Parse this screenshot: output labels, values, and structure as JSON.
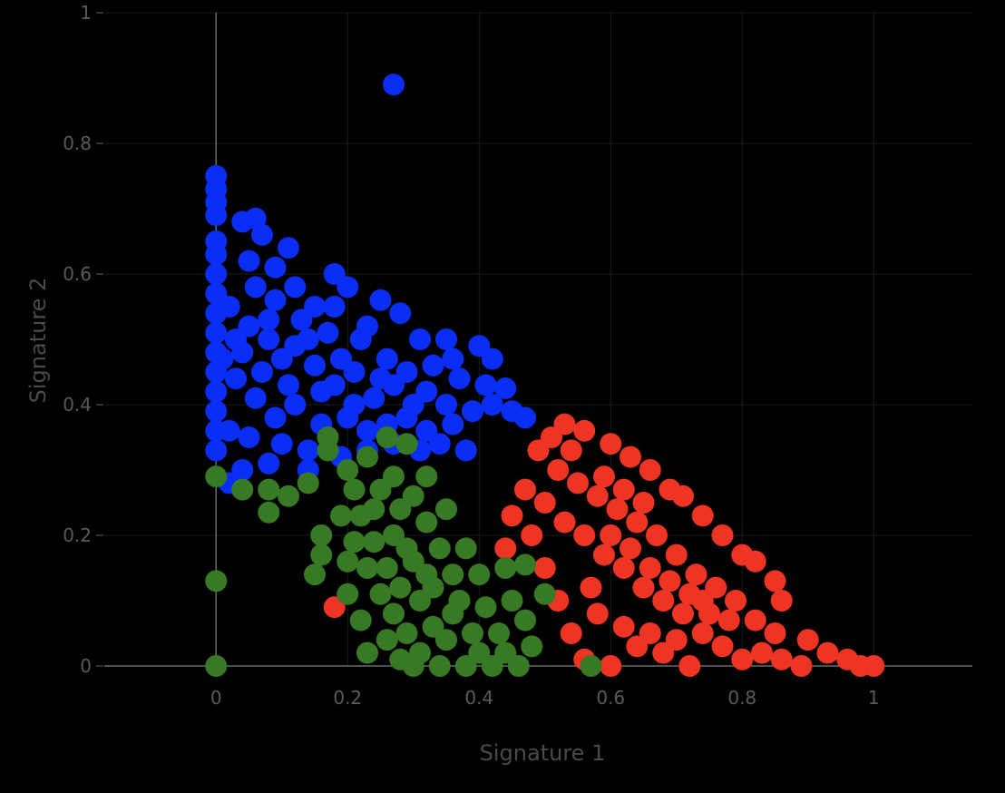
{
  "chart_data": {
    "type": "scatter",
    "title": "",
    "xlabel": "Signature 1",
    "ylabel": "Signature 2",
    "xlim": [
      -0.17,
      1.15
    ],
    "ylim": [
      0,
      1
    ],
    "x_ticks": [
      0,
      0.2,
      0.4,
      0.6,
      0.8,
      1
    ],
    "y_ticks": [
      0,
      0.2,
      0.4,
      0.6,
      0.8,
      1
    ],
    "x_tick_labels": [
      "0",
      "0.2",
      "0.4",
      "0.6",
      "0.8",
      "1"
    ],
    "y_tick_labels": [
      "0",
      "0.2",
      "0.4",
      "0.6",
      "0.8",
      "1"
    ],
    "grid": true,
    "legend": "none",
    "series": [
      {
        "color": "#0a2ef5",
        "points": [
          [
            0.27,
            0.89
          ],
          [
            0,
            0.75
          ],
          [
            0,
            0.73
          ],
          [
            0,
            0.71
          ],
          [
            0,
            0.69
          ],
          [
            0.04,
            0.68
          ],
          [
            0.06,
            0.685
          ],
          [
            0.07,
            0.66
          ],
          [
            0,
            0.65
          ],
          [
            0,
            0.63
          ],
          [
            0.11,
            0.64
          ],
          [
            0.05,
            0.62
          ],
          [
            0.09,
            0.61
          ],
          [
            0,
            0.6
          ],
          [
            0.18,
            0.6
          ],
          [
            0.2,
            0.58
          ],
          [
            0.25,
            0.56
          ],
          [
            0.12,
            0.58
          ],
          [
            0.15,
            0.55
          ],
          [
            0.28,
            0.54
          ],
          [
            0.31,
            0.5
          ],
          [
            0.35,
            0.5
          ],
          [
            0.4,
            0.49
          ],
          [
            0.42,
            0.47
          ],
          [
            0.36,
            0.47
          ],
          [
            0.33,
            0.46
          ],
          [
            0.41,
            0.43
          ],
          [
            0.44,
            0.425
          ],
          [
            0.45,
            0.39
          ],
          [
            0.47,
            0.38
          ],
          [
            0.39,
            0.39
          ],
          [
            0.36,
            0.37
          ],
          [
            0.32,
            0.36
          ],
          [
            0.27,
            0.34
          ],
          [
            0.31,
            0.33
          ],
          [
            0.23,
            0.33
          ],
          [
            0.19,
            0.32
          ],
          [
            0.14,
            0.3
          ],
          [
            0.08,
            0.31
          ],
          [
            0.04,
            0.3
          ],
          [
            0.02,
            0.28
          ],
          [
            0.38,
            0.33
          ],
          [
            0.34,
            0.34
          ],
          [
            0.02,
            0.55
          ],
          [
            0.05,
            0.52
          ],
          [
            0.08,
            0.5
          ],
          [
            0.1,
            0.47
          ],
          [
            0.12,
            0.49
          ],
          [
            0.15,
            0.46
          ],
          [
            0.18,
            0.43
          ],
          [
            0.21,
            0.45
          ],
          [
            0.24,
            0.41
          ],
          [
            0.27,
            0.43
          ],
          [
            0.3,
            0.4
          ],
          [
            0.03,
            0.44
          ],
          [
            0.06,
            0.41
          ],
          [
            0.09,
            0.38
          ],
          [
            0.12,
            0.4
          ],
          [
            0.16,
            0.37
          ],
          [
            0.2,
            0.38
          ],
          [
            0.23,
            0.36
          ],
          [
            0.26,
            0.37
          ],
          [
            0.29,
            0.38
          ],
          [
            0.02,
            0.36
          ],
          [
            0.05,
            0.35
          ],
          [
            0.1,
            0.34
          ],
          [
            0.14,
            0.33
          ],
          [
            0.04,
            0.48
          ],
          [
            0.07,
            0.45
          ],
          [
            0.11,
            0.43
          ],
          [
            0.17,
            0.51
          ],
          [
            0.22,
            0.5
          ],
          [
            0.26,
            0.47
          ],
          [
            0.13,
            0.53
          ],
          [
            0.09,
            0.56
          ],
          [
            0.06,
            0.58
          ],
          [
            0,
            0.57
          ],
          [
            0,
            0.54
          ],
          [
            0,
            0.51
          ],
          [
            0,
            0.48
          ],
          [
            0,
            0.45
          ],
          [
            0,
            0.42
          ],
          [
            0,
            0.39
          ],
          [
            0,
            0.36
          ],
          [
            0,
            0.33
          ],
          [
            0.19,
            0.47
          ],
          [
            0.16,
            0.42
          ],
          [
            0.25,
            0.44
          ],
          [
            0.32,
            0.42
          ],
          [
            0.35,
            0.4
          ],
          [
            0.29,
            0.45
          ],
          [
            0.21,
            0.4
          ],
          [
            0.08,
            0.53
          ],
          [
            0.14,
            0.5
          ],
          [
            0.03,
            0.5
          ],
          [
            0.01,
            0.47
          ],
          [
            0.18,
            0.55
          ],
          [
            0.23,
            0.52
          ],
          [
            0.37,
            0.44
          ],
          [
            0.42,
            0.4
          ]
        ]
      },
      {
        "color": "#ee3524",
        "points": [
          [
            1,
            0
          ],
          [
            0.98,
            0
          ],
          [
            0.96,
            0.01
          ],
          [
            0.93,
            0.02
          ],
          [
            0.9,
            0.04
          ],
          [
            0.86,
            0.1
          ],
          [
            0.85,
            0.13
          ],
          [
            0.82,
            0.16
          ],
          [
            0.8,
            0.17
          ],
          [
            0.77,
            0.2
          ],
          [
            0.74,
            0.23
          ],
          [
            0.71,
            0.26
          ],
          [
            0.69,
            0.27
          ],
          [
            0.66,
            0.3
          ],
          [
            0.63,
            0.32
          ],
          [
            0.6,
            0.34
          ],
          [
            0.56,
            0.36
          ],
          [
            0.53,
            0.37
          ],
          [
            0.49,
            0.33
          ],
          [
            0.18,
            0.09
          ],
          [
            0.5,
            0.25
          ],
          [
            0.53,
            0.22
          ],
          [
            0.56,
            0.2
          ],
          [
            0.59,
            0.17
          ],
          [
            0.62,
            0.15
          ],
          [
            0.65,
            0.12
          ],
          [
            0.68,
            0.1
          ],
          [
            0.71,
            0.08
          ],
          [
            0.74,
            0.05
          ],
          [
            0.77,
            0.03
          ],
          [
            0.8,
            0.01
          ],
          [
            0.83,
            0.02
          ],
          [
            0.86,
            0.01
          ],
          [
            0.89,
            0
          ],
          [
            0.52,
            0.3
          ],
          [
            0.55,
            0.28
          ],
          [
            0.58,
            0.26
          ],
          [
            0.61,
            0.24
          ],
          [
            0.64,
            0.22
          ],
          [
            0.67,
            0.2
          ],
          [
            0.7,
            0.17
          ],
          [
            0.73,
            0.14
          ],
          [
            0.76,
            0.12
          ],
          [
            0.79,
            0.1
          ],
          [
            0.82,
            0.07
          ],
          [
            0.85,
            0.05
          ],
          [
            0.48,
            0.2
          ],
          [
            0.5,
            0.15
          ],
          [
            0.52,
            0.1
          ],
          [
            0.54,
            0.05
          ],
          [
            0.56,
            0.01
          ],
          [
            0.6,
            0
          ],
          [
            0.64,
            0.03
          ],
          [
            0.68,
            0.02
          ],
          [
            0.72,
            0
          ],
          [
            0.58,
            0.08
          ],
          [
            0.62,
            0.06
          ],
          [
            0.66,
            0.05
          ],
          [
            0.7,
            0.04
          ],
          [
            0.74,
            0.1
          ],
          [
            0.78,
            0.07
          ],
          [
            0.47,
            0.27
          ],
          [
            0.45,
            0.23
          ],
          [
            0.44,
            0.18
          ],
          [
            0.57,
            0.12
          ],
          [
            0.6,
            0.2
          ],
          [
            0.63,
            0.18
          ],
          [
            0.66,
            0.15
          ],
          [
            0.69,
            0.13
          ],
          [
            0.72,
            0.11
          ],
          [
            0.75,
            0.08
          ],
          [
            0.59,
            0.29
          ],
          [
            0.62,
            0.27
          ],
          [
            0.65,
            0.25
          ],
          [
            0.54,
            0.33
          ],
          [
            0.51,
            0.35
          ]
        ]
      },
      {
        "color": "#387a23",
        "points": [
          [
            0,
            0.29
          ],
          [
            0.04,
            0.27
          ],
          [
            0.08,
            0.27
          ],
          [
            0.08,
            0.235
          ],
          [
            0.11,
            0.26
          ],
          [
            0.14,
            0.28
          ],
          [
            0.16,
            0.2
          ],
          [
            0.16,
            0.17
          ],
          [
            0.15,
            0.14
          ],
          [
            0,
            0.13
          ],
          [
            0,
            0
          ],
          [
            0.17,
            0.35
          ],
          [
            0.17,
            0.33
          ],
          [
            0.26,
            0.35
          ],
          [
            0.29,
            0.34
          ],
          [
            0.32,
            0.29
          ],
          [
            0.23,
            0.32
          ],
          [
            0.2,
            0.3
          ],
          [
            0.2,
            0.11
          ],
          [
            0.22,
            0.07
          ],
          [
            0.23,
            0.02
          ],
          [
            0.26,
            0.04
          ],
          [
            0.28,
            0.01
          ],
          [
            0.3,
            0
          ],
          [
            0.34,
            0
          ],
          [
            0.38,
            0
          ],
          [
            0.42,
            0
          ],
          [
            0.46,
            0
          ],
          [
            0.48,
            0.03
          ],
          [
            0.47,
            0.07
          ],
          [
            0.45,
            0.1
          ],
          [
            0.44,
            0.15
          ],
          [
            0.47,
            0.155
          ],
          [
            0.5,
            0.11
          ],
          [
            0.57,
            0
          ],
          [
            0.39,
            0.05
          ],
          [
            0.36,
            0.08
          ],
          [
            0.33,
            0.12
          ],
          [
            0.3,
            0.16
          ],
          [
            0.27,
            0.2
          ],
          [
            0.24,
            0.24
          ],
          [
            0.21,
            0.27
          ],
          [
            0.19,
            0.23
          ],
          [
            0.21,
            0.19
          ],
          [
            0.23,
            0.15
          ],
          [
            0.25,
            0.11
          ],
          [
            0.27,
            0.08
          ],
          [
            0.29,
            0.05
          ],
          [
            0.31,
            0.02
          ],
          [
            0.35,
            0.04
          ],
          [
            0.37,
            0.1
          ],
          [
            0.4,
            0.14
          ],
          [
            0.41,
            0.09
          ],
          [
            0.43,
            0.05
          ],
          [
            0.34,
            0.18
          ],
          [
            0.32,
            0.22
          ],
          [
            0.3,
            0.26
          ],
          [
            0.27,
            0.29
          ],
          [
            0.25,
            0.27
          ],
          [
            0.22,
            0.23
          ],
          [
            0.26,
            0.15
          ],
          [
            0.28,
            0.12
          ],
          [
            0.31,
            0.1
          ],
          [
            0.33,
            0.06
          ],
          [
            0.36,
            0.14
          ],
          [
            0.38,
            0.18
          ],
          [
            0.24,
            0.19
          ],
          [
            0.2,
            0.16
          ],
          [
            0.28,
            0.24
          ],
          [
            0.35,
            0.24
          ],
          [
            0.4,
            0.02
          ],
          [
            0.44,
            0.02
          ],
          [
            0.32,
            0.14
          ],
          [
            0.29,
            0.18
          ]
        ]
      }
    ]
  }
}
